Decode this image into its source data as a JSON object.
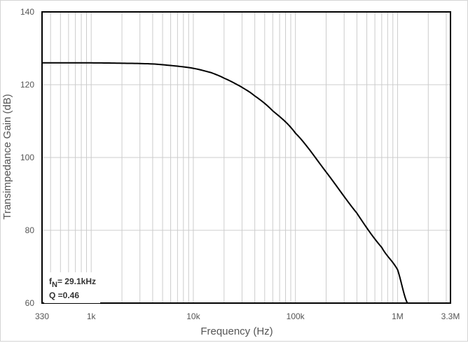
{
  "chart_data": {
    "type": "line",
    "title": "",
    "xlabel": "Frequency (Hz)",
    "ylabel": "Transimpedance Gain (dB)",
    "x_scale": "log",
    "xlim": [
      330,
      3300000
    ],
    "ylim": [
      60,
      140
    ],
    "x_ticks": [
      {
        "value": 330,
        "label": "330"
      },
      {
        "value": 1000,
        "label": "1k"
      },
      {
        "value": 10000,
        "label": "10k"
      },
      {
        "value": 100000,
        "label": "100k"
      },
      {
        "value": 1000000,
        "label": "1M"
      },
      {
        "value": 3300000,
        "label": "3.3M"
      }
    ],
    "y_ticks": [
      60,
      80,
      100,
      120,
      140
    ],
    "grid": true,
    "series": [
      {
        "color": "#000000",
        "x": [
          330,
          1000,
          2000,
          4000,
          7000,
          10000,
          15000,
          20000,
          29100,
          40000,
          60000,
          100000,
          200000,
          400000,
          700000,
          1000000,
          1250000
        ],
        "values": [
          126.0,
          126.0,
          125.9,
          125.7,
          125.1,
          124.5,
          123.3,
          121.8,
          119.5,
          116.9,
          112.8,
          106.7,
          96.0,
          84.7,
          75.3,
          69.2,
          60.0
        ]
      }
    ],
    "annotations": {
      "fn_prefix": "f",
      "fn_subscript": "N",
      "fn_value": "= 29.1kHz",
      "q_text": "Q =0.46"
    }
  }
}
